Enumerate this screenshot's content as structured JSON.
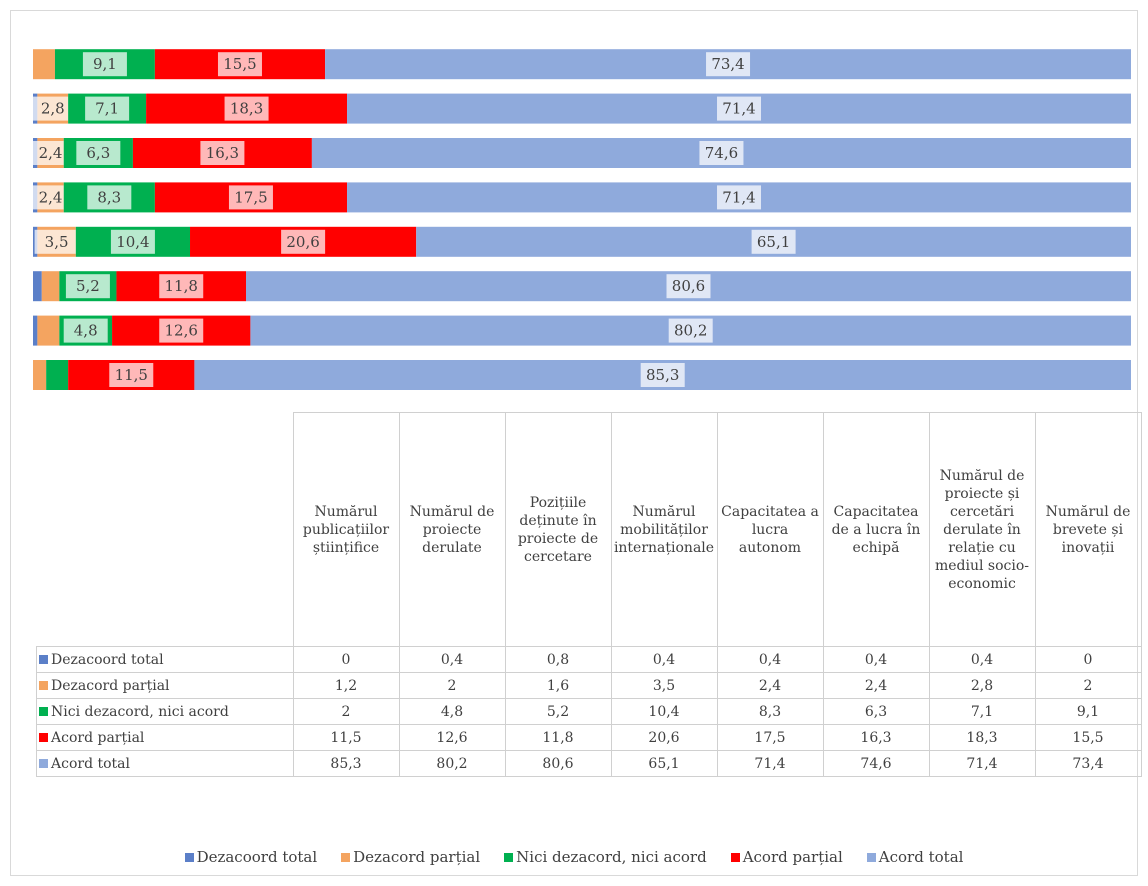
{
  "chart_data": {
    "type": "bar",
    "orientation": "horizontal",
    "stacked": true,
    "categories": [
      "Numărul publicațiilor științifice",
      "Numărul de proiecte derulate",
      "Pozițiile deținute în proiecte de cercetare",
      "Numărul mobilităților internaționale",
      "Capacitatea a lucra autonom",
      "Capacitatea de a lucra în echipă",
      "Numărul de proiecte și cercetări derulate în relație cu mediul socio-economic",
      "Numărul de brevete și inovații"
    ],
    "xlim": [
      0,
      100
    ],
    "legend": "bottom",
    "series": [
      {
        "name": "Dezacoord total",
        "color": "#5b7fc8",
        "values": [
          0,
          0.4,
          0.8,
          0.4,
          0.4,
          0.4,
          0.4,
          0
        ],
        "value_labels": [
          "0",
          "0,4",
          "0,8",
          "0,4",
          "0,4",
          "0,4",
          "0,4",
          "0"
        ]
      },
      {
        "name": "Dezacord parțial",
        "color": "#f4a460",
        "values": [
          1.2,
          2,
          1.6,
          3.5,
          2.4,
          2.4,
          2.8,
          2
        ],
        "value_labels": [
          "1,2",
          "2",
          "1,6",
          "3,5",
          "2,4",
          "2,4",
          "2,8",
          "2"
        ]
      },
      {
        "name": "Nici dezacord, nici acord",
        "color": "#00b050",
        "values": [
          2,
          4.8,
          5.2,
          10.4,
          8.3,
          6.3,
          7.1,
          9.1
        ],
        "value_labels": [
          "2",
          "4,8",
          "5,2",
          "10,4",
          "8,3",
          "6,3",
          "7,1",
          "9,1"
        ]
      },
      {
        "name": "Acord parțial",
        "color": "#ff0000",
        "values": [
          11.5,
          12.6,
          11.8,
          20.6,
          17.5,
          16.3,
          18.3,
          15.5
        ],
        "value_labels": [
          "11,5",
          "12,6",
          "11,8",
          "20,6",
          "17,5",
          "16,3",
          "18,3",
          "15,5"
        ]
      },
      {
        "name": "Acord total",
        "color": "#8faadc",
        "values": [
          85.3,
          80.2,
          80.6,
          65.1,
          71.4,
          74.6,
          71.4,
          73.4
        ],
        "value_labels": [
          "85,3",
          "80,2",
          "80,6",
          "65,1",
          "71,4",
          "74,6",
          "71,4",
          "73,4"
        ]
      }
    ]
  }
}
